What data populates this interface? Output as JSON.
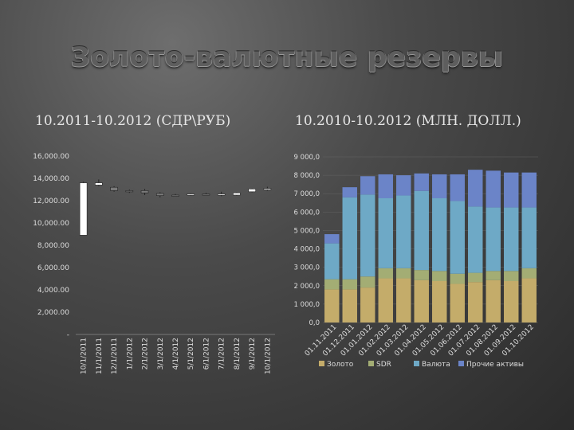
{
  "slide": {
    "title": "Золото-валютные резервы",
    "left_caption": "10.2011-10.2012 (СДР\\РУБ)",
    "right_caption": "10.2010-10.2012 (МЛН. ДОЛЛ.)"
  },
  "chart_data": [
    {
      "type": "candlestick",
      "categories": [
        "10/1/2011",
        "11/1/2011",
        "12/1/2011",
        "1/1/2012",
        "2/1/2012",
        "3/1/2012",
        "4/1/2012",
        "5/1/2012",
        "6/1/2012",
        "7/1/2012",
        "8/1/2012",
        "9/1/2012",
        "10/1/2012"
      ],
      "y_tick_labels": [
        "-",
        "2,000.00",
        "4,000.00",
        "6,000.00",
        "8,000.00",
        "10,000.00",
        "12,000.00",
        "14,000.00",
        "16,000.00"
      ],
      "ylim": [
        0,
        16000
      ],
      "candles": [
        {
          "open": 8900,
          "close": 13600,
          "high": 13700,
          "low": 8900
        },
        {
          "open": 13400,
          "close": 13600,
          "high": 13900,
          "low": 13300
        },
        {
          "open": 13200,
          "close": 12900,
          "high": 13300,
          "low": 12800
        },
        {
          "open": 12900,
          "close": 12850,
          "high": 13000,
          "low": 12700
        },
        {
          "open": 12900,
          "close": 12700,
          "high": 13050,
          "low": 12500
        },
        {
          "open": 12650,
          "close": 12450,
          "high": 12750,
          "low": 12300
        },
        {
          "open": 12500,
          "close": 12450,
          "high": 12600,
          "low": 12400
        },
        {
          "open": 12500,
          "close": 12600,
          "high": 12650,
          "low": 12450
        },
        {
          "open": 12600,
          "close": 12550,
          "high": 12700,
          "low": 12500
        },
        {
          "open": 12500,
          "close": 12600,
          "high": 12800,
          "low": 12400
        },
        {
          "open": 12500,
          "close": 12700,
          "high": 12750,
          "low": 12450
        },
        {
          "open": 12800,
          "close": 13050,
          "high": 13100,
          "low": 12750
        },
        {
          "open": 13000,
          "close": 13100,
          "high": 13250,
          "low": 12900
        }
      ],
      "colors": {
        "up": "#ffffff",
        "down": "#7a7a7a",
        "wick": "#222222"
      }
    },
    {
      "type": "bar",
      "stacked": true,
      "categories": [
        "01.11.2011",
        "01.12.2011",
        "01.01.2012",
        "01.02.2012",
        "01.03.2012",
        "01.04.2012",
        "01.05.2012",
        "01.06.2012",
        "01.07.2012",
        "01.08.2012",
        "01.09.2012",
        "01.10.2012"
      ],
      "y_tick_labels": [
        "0,0",
        "1 000,0",
        "2 000,0",
        "3 000,0",
        "4 000,0",
        "5 000,0",
        "6 000,0",
        "7 000,0",
        "8 000,0",
        "9 000,0"
      ],
      "ylim": [
        0,
        9000
      ],
      "series": [
        {
          "name": "Золото",
          "color": "#c4ac6a",
          "values": [
            1800,
            1800,
            1900,
            2400,
            2400,
            2300,
            2250,
            2100,
            2200,
            2300,
            2250,
            2400
          ]
        },
        {
          "name": "SDR",
          "color": "#a3ad74",
          "values": [
            550,
            550,
            600,
            550,
            550,
            550,
            550,
            550,
            500,
            500,
            550,
            550
          ]
        },
        {
          "name": "Валюта",
          "color": "#6ea9c6",
          "values": [
            1950,
            4450,
            4450,
            3800,
            3950,
            4300,
            3950,
            3950,
            3600,
            3450,
            3450,
            3300
          ]
        },
        {
          "name": "Прочие активы",
          "color": "#6b84c8",
          "values": [
            500,
            550,
            1000,
            1300,
            1100,
            950,
            1300,
            1450,
            2000,
            2000,
            1900,
            1900
          ]
        }
      ]
    }
  ]
}
